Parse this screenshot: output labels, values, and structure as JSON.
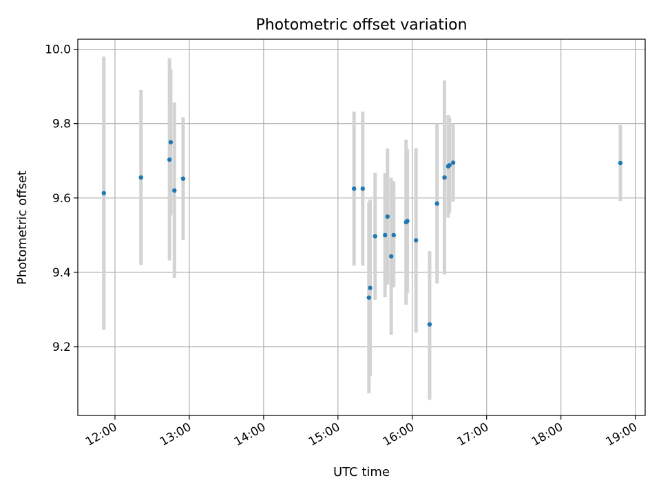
{
  "chart_data": {
    "type": "scatter",
    "title": "Photometric offset variation",
    "xlabel": "UTC time",
    "ylabel": "Photometric offset",
    "x_axis": "time",
    "xlim": [
      "11:30",
      "19:08"
    ],
    "ylim": [
      9.015,
      10.027
    ],
    "x_ticks": [
      "12:00",
      "13:00",
      "14:00",
      "15:00",
      "16:00",
      "17:00",
      "18:00",
      "19:00"
    ],
    "y_ticks": [
      "9.2",
      "9.4",
      "9.6",
      "9.8",
      "10.0"
    ],
    "grid": true,
    "legend": "none",
    "point_color": "#1f77b4",
    "errorbar_color": "#d3d3d3",
    "points": [
      {
        "x": "11:51",
        "y": 9.613,
        "ylow": 9.245,
        "yhigh": 9.98
      },
      {
        "x": "12:21",
        "y": 9.655,
        "ylow": 9.42,
        "yhigh": 9.89
      },
      {
        "x": "12:44",
        "y": 9.703,
        "ylow": 9.432,
        "yhigh": 9.976
      },
      {
        "x": "12:45",
        "y": 9.75,
        "ylow": 9.553,
        "yhigh": 9.947
      },
      {
        "x": "12:48",
        "y": 9.62,
        "ylow": 9.385,
        "yhigh": 9.857
      },
      {
        "x": "12:55",
        "y": 9.652,
        "ylow": 9.487,
        "yhigh": 9.817
      },
      {
        "x": "15:13",
        "y": 9.625,
        "ylow": 9.418,
        "yhigh": 9.832
      },
      {
        "x": "15:20",
        "y": 9.625,
        "ylow": 9.418,
        "yhigh": 9.832
      },
      {
        "x": "15:25",
        "y": 9.332,
        "ylow": 9.075,
        "yhigh": 9.589
      },
      {
        "x": "15:26",
        "y": 9.358,
        "ylow": 9.12,
        "yhigh": 9.596
      },
      {
        "x": "15:30",
        "y": 9.497,
        "ylow": 9.326,
        "yhigh": 9.668
      },
      {
        "x": "15:38",
        "y": 9.5,
        "ylow": 9.333,
        "yhigh": 9.667
      },
      {
        "x": "15:40",
        "y": 9.55,
        "ylow": 9.367,
        "yhigh": 9.733
      },
      {
        "x": "15:43",
        "y": 9.443,
        "ylow": 9.232,
        "yhigh": 9.654
      },
      {
        "x": "15:45",
        "y": 9.5,
        "ylow": 9.36,
        "yhigh": 9.645
      },
      {
        "x": "15:55",
        "y": 9.535,
        "ylow": 9.313,
        "yhigh": 9.757
      },
      {
        "x": "15:56",
        "y": 9.538,
        "ylow": 9.345,
        "yhigh": 9.731
      },
      {
        "x": "16:03",
        "y": 9.486,
        "ylow": 9.238,
        "yhigh": 9.734
      },
      {
        "x": "16:14",
        "y": 9.26,
        "ylow": 9.057,
        "yhigh": 9.457
      },
      {
        "x": "16:20",
        "y": 9.585,
        "ylow": 9.37,
        "yhigh": 9.8
      },
      {
        "x": "16:26",
        "y": 9.655,
        "ylow": 9.394,
        "yhigh": 9.916
      },
      {
        "x": "16:29",
        "y": 9.685,
        "ylow": 9.547,
        "yhigh": 9.823
      },
      {
        "x": "16:30",
        "y": 9.688,
        "ylow": 9.56,
        "yhigh": 9.816
      },
      {
        "x": "16:33",
        "y": 9.695,
        "ylow": 9.59,
        "yhigh": 9.8
      },
      {
        "x": "18:48",
        "y": 9.694,
        "ylow": 9.592,
        "yhigh": 9.796
      }
    ]
  }
}
